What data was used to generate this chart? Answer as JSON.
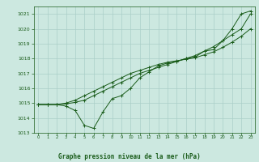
{
  "title": "Graphe pression niveau de la mer (hPa)",
  "bg_color": "#cce8e0",
  "grid_color": "#aacfc8",
  "line_color": "#1a5c1a",
  "marker_color": "#1a5c1a",
  "xlim": [
    -0.5,
    23.5
  ],
  "ylim": [
    1013,
    1021.5
  ],
  "xticks": [
    0,
    1,
    2,
    3,
    4,
    5,
    6,
    7,
    8,
    9,
    10,
    11,
    12,
    13,
    14,
    15,
    16,
    17,
    18,
    19,
    20,
    21,
    22,
    23
  ],
  "yticks": [
    1013,
    1014,
    1015,
    1016,
    1017,
    1018,
    1019,
    1020,
    1021
  ],
  "series1": [
    1014.9,
    1014.9,
    1014.9,
    1014.8,
    1014.5,
    1013.5,
    1013.3,
    1014.4,
    1015.3,
    1015.5,
    1016.0,
    1016.7,
    1017.1,
    1017.5,
    1017.7,
    1017.8,
    1018.0,
    1018.1,
    1018.5,
    1018.6,
    1019.2,
    1020.0,
    1021.0,
    1021.2
  ],
  "series2": [
    1014.9,
    1014.9,
    1014.9,
    1015.0,
    1015.2,
    1015.5,
    1015.8,
    1016.1,
    1016.4,
    1016.7,
    1017.0,
    1017.2,
    1017.4,
    1017.6,
    1017.75,
    1017.85,
    1017.95,
    1018.05,
    1018.25,
    1018.45,
    1018.75,
    1019.1,
    1019.5,
    1020.0
  ],
  "series3": [
    1014.9,
    1014.9,
    1014.9,
    1014.95,
    1015.05,
    1015.2,
    1015.5,
    1015.8,
    1016.1,
    1016.4,
    1016.7,
    1017.0,
    1017.2,
    1017.4,
    1017.6,
    1017.8,
    1018.0,
    1018.2,
    1018.5,
    1018.8,
    1019.2,
    1019.6,
    1020.0,
    1021.0
  ]
}
